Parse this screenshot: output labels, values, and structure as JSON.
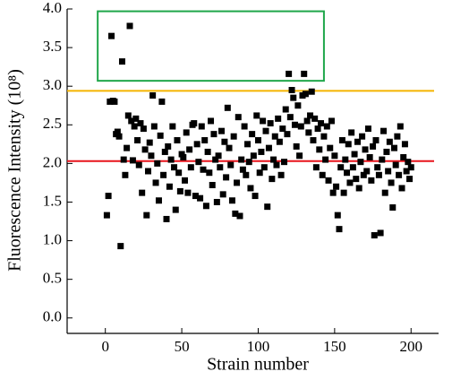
{
  "chart_data": {
    "type": "scatter",
    "x_label": "Strain number",
    "y_label": "Fluorescence Intensity (10⁸)",
    "xlim": [
      -25,
      218
    ],
    "ylim": [
      -0.2,
      4.0
    ],
    "xticks": [
      0,
      50,
      100,
      150,
      200
    ],
    "yticks": [
      {
        "value": 0,
        "label": "0.0"
      },
      {
        "value": 0.5,
        "label": "0.5"
      },
      {
        "value": 1,
        "label": "1.0"
      },
      {
        "value": 1.5,
        "label": "1.5"
      },
      {
        "value": 2,
        "label": "2.0"
      },
      {
        "value": 2.5,
        "label": "2.5"
      },
      {
        "value": 3,
        "label": "3.0"
      },
      {
        "value": 3.5,
        "label": "3.5"
      },
      {
        "value": 4,
        "label": "4.0"
      }
    ],
    "series": [
      {
        "color": "#000000",
        "x": [
          1,
          2,
          3,
          4,
          5,
          6,
          7,
          8,
          9,
          10,
          11,
          12,
          13,
          14,
          15,
          16,
          17,
          18,
          19,
          20,
          21,
          22,
          23,
          24,
          25,
          26,
          27,
          28,
          29,
          30,
          31,
          32,
          33,
          34,
          35,
          36,
          37,
          38,
          39,
          40,
          41,
          42,
          43,
          44,
          45,
          46,
          47,
          48,
          49,
          50,
          51,
          52,
          53,
          54,
          55,
          56,
          57,
          58,
          59,
          60,
          61,
          62,
          63,
          64,
          65,
          66,
          67,
          68,
          69,
          70,
          71,
          72,
          73,
          74,
          75,
          76,
          77,
          78,
          79,
          80,
          81,
          82,
          83,
          84,
          85,
          86,
          87,
          88,
          89,
          90,
          91,
          92,
          93,
          94,
          95,
          96,
          97,
          98,
          99,
          100,
          101,
          102,
          103,
          104,
          105,
          106,
          107,
          108,
          109,
          110,
          111,
          112,
          113,
          114,
          115,
          116,
          117,
          118,
          119,
          120,
          121,
          122,
          123,
          124,
          125,
          126,
          127,
          128,
          129,
          130,
          131,
          132,
          133,
          134,
          135,
          136,
          137,
          138,
          139,
          140,
          141,
          142,
          143,
          144,
          145,
          146,
          147,
          148,
          149,
          150,
          151,
          152,
          153,
          154,
          155,
          156,
          157,
          158,
          159,
          160,
          161,
          162,
          163,
          164,
          165,
          166,
          167,
          168,
          169,
          170,
          171,
          172,
          173,
          174,
          175,
          176,
          177,
          178,
          179,
          180,
          181,
          182,
          183,
          184,
          185,
          186,
          187,
          188,
          189,
          190,
          191,
          192,
          193,
          194,
          195,
          196,
          197,
          198,
          199,
          200
        ],
        "values": [
          1.33,
          1.58,
          2.8,
          3.65,
          2.81,
          2.8,
          2.38,
          2.41,
          2.35,
          0.93,
          3.32,
          2.05,
          1.85,
          2.2,
          2.62,
          3.78,
          2.55,
          2.04,
          2.48,
          2.58,
          2.3,
          1.98,
          2.52,
          1.62,
          2.45,
          2.18,
          1.33,
          1.9,
          2.27,
          2.1,
          2.88,
          2.48,
          1.75,
          2.0,
          1.52,
          2.36,
          2.8,
          1.85,
          2.15,
          1.28,
          2.22,
          1.7,
          2.05,
          2.48,
          1.95,
          1.4,
          2.3,
          1.88,
          1.64,
          2.12,
          2.08,
          1.78,
          2.4,
          1.62,
          2.18,
          1.95,
          2.5,
          2.52,
          1.58,
          2.25,
          2.02,
          1.55,
          2.48,
          1.92,
          2.3,
          1.45,
          2.15,
          1.88,
          2.55,
          1.72,
          2.38,
          2.05,
          1.5,
          2.1,
          1.95,
          2.42,
          1.6,
          2.28,
          1.82,
          2.72,
          2.2,
          1.98,
          1.52,
          2.35,
          1.35,
          1.75,
          2.6,
          1.32,
          2.05,
          1.92,
          2.48,
          1.85,
          2.25,
          2.02,
          1.68,
          2.38,
          2.1,
          1.58,
          2.62,
          2.3,
          1.88,
          2.15,
          2.55,
          1.95,
          2.42,
          1.44,
          2.2,
          2.52,
          1.8,
          2.05,
          2.35,
          1.98,
          2.58,
          2.28,
          1.85,
          2.45,
          2.02,
          2.7,
          2.38,
          3.16,
          2.6,
          2.95,
          2.85,
          2.5,
          2.22,
          2.75,
          2.1,
          2.48,
          2.88,
          3.16,
          2.9,
          2.55,
          2.4,
          2.62,
          2.93,
          2.3,
          2.58,
          1.95,
          2.45,
          2.18,
          2.52,
          1.85,
          2.35,
          2.05,
          2.48,
          1.78,
          2.2,
          2.55,
          1.62,
          2.1,
          1.7,
          1.33,
          1.15,
          1.95,
          2.3,
          1.62,
          2.05,
          1.88,
          2.25,
          1.75,
          2.4,
          1.95,
          2.12,
          1.8,
          2.28,
          1.68,
          2.02,
          2.35,
          1.85,
          2.18,
          1.9,
          2.45,
          2.08,
          1.78,
          2.22,
          1.07,
          2.3,
          1.95,
          1.85,
          1.1,
          2.05,
          2.42,
          1.62,
          2.15,
          1.9,
          2.28,
          1.75,
          1.43,
          2.2,
          1.98,
          2.35,
          1.85,
          2.48,
          1.68,
          2.08,
          2.25,
          1.9,
          2.02,
          1.8,
          1.95
        ]
      }
    ],
    "hlines": [
      {
        "value": 2.94,
        "color": "#f5b400"
      },
      {
        "value": 2.03,
        "color": "#e8141c"
      }
    ],
    "box": {
      "xlim": [
        -5,
        143
      ],
      "ylim": [
        3.07,
        3.97
      ],
      "color": "#1fa64a"
    }
  }
}
